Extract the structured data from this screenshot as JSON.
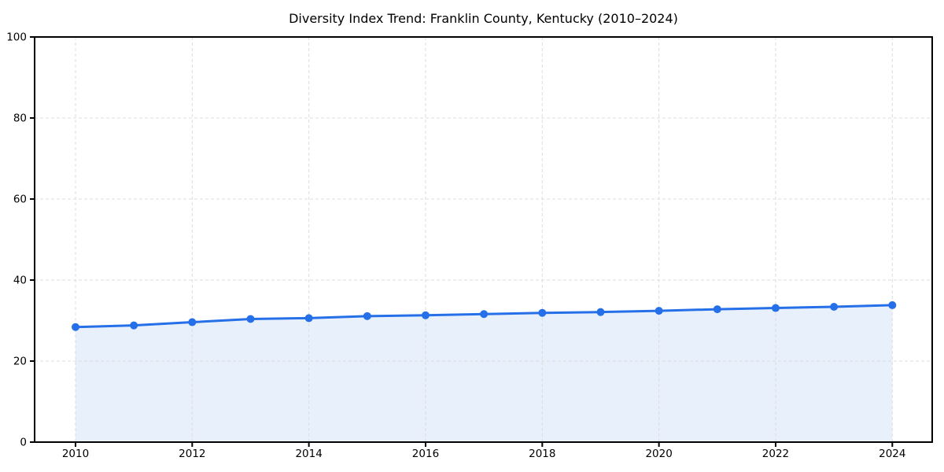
{
  "chart_data": {
    "type": "line",
    "title": "Diversity Index Trend: Franklin County, Kentucky (2010–2024)",
    "xlabel": "",
    "ylabel": "",
    "x": [
      2010,
      2011,
      2012,
      2013,
      2014,
      2015,
      2016,
      2017,
      2018,
      2019,
      2020,
      2021,
      2022,
      2023,
      2024
    ],
    "values": [
      28.4,
      28.8,
      29.6,
      30.4,
      30.6,
      31.1,
      31.3,
      31.6,
      31.9,
      32.1,
      32.4,
      32.8,
      33.1,
      33.4,
      33.8
    ],
    "series_name": "Diversity Index",
    "xticks": [
      "2010",
      "2012",
      "2014",
      "2016",
      "2018",
      "2020",
      "2022",
      "2024"
    ],
    "yticks": [
      "0",
      "20",
      "40",
      "60",
      "80",
      "100"
    ],
    "ylim": [
      0,
      100
    ],
    "xlim": [
      2009.3,
      2024.7
    ],
    "grid": true,
    "grid_style": "dashed",
    "legend": false,
    "marker": "circle",
    "colors": {
      "line": "#2570E8",
      "marker": "#2570E8",
      "fill": "#E8F0FC",
      "grid": "#DCDCDC",
      "axis": "#000000",
      "tick_label": "#000000",
      "title": "#000000"
    }
  }
}
